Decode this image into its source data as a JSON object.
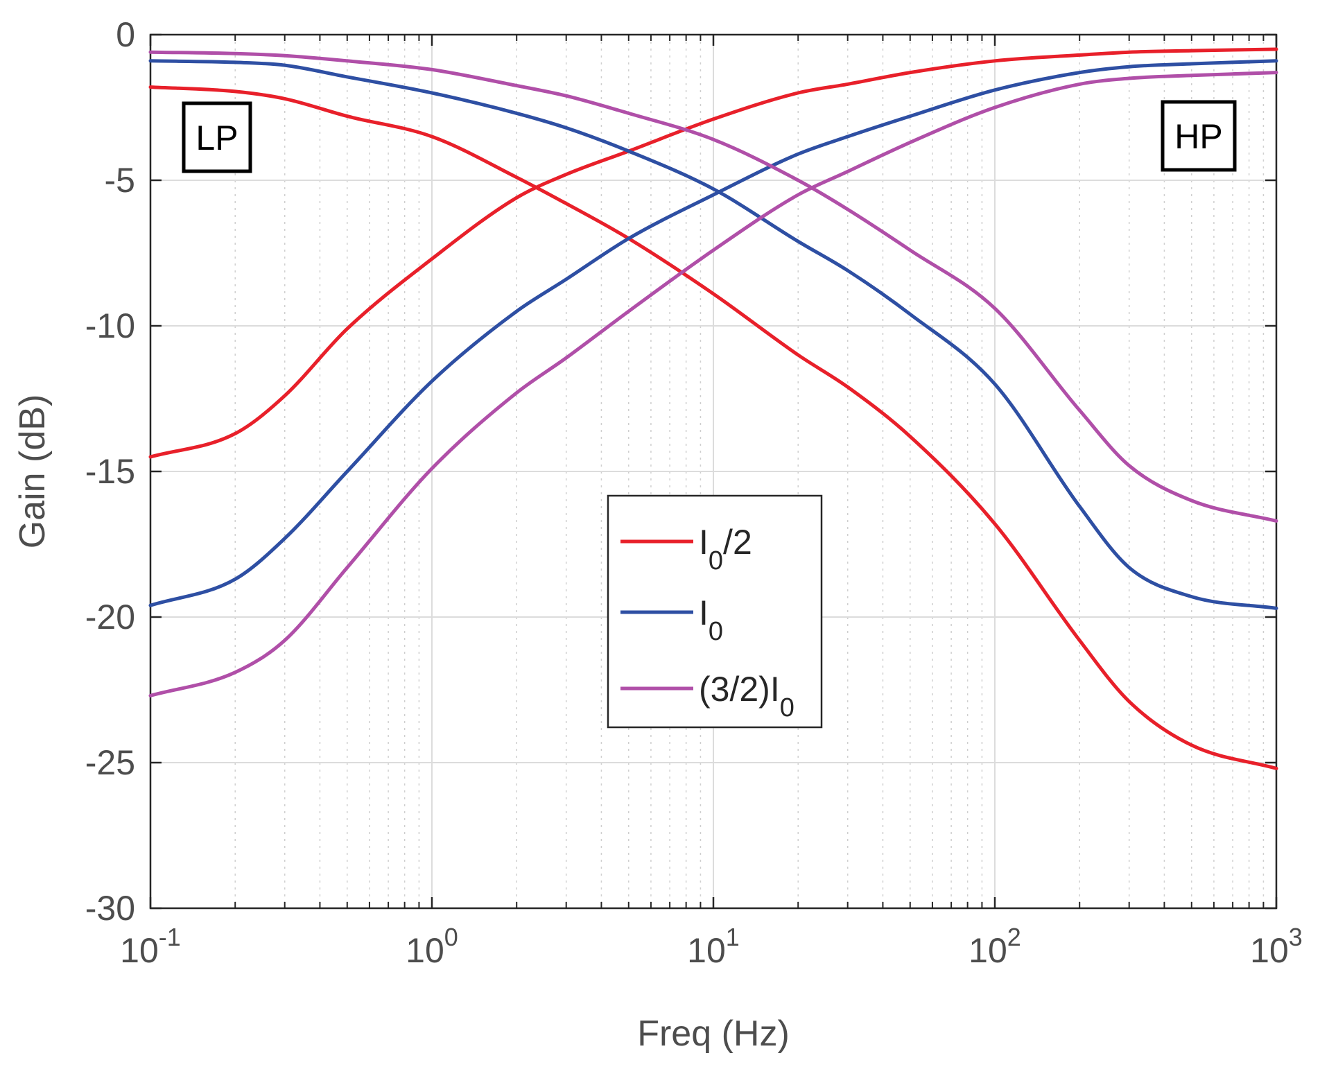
{
  "chart_data": {
    "type": "line",
    "xscale": "log",
    "xlabel": "Freq (Hz)",
    "ylabel": "Gain (dB)",
    "xlim": [
      0.1,
      1000
    ],
    "ylim": [
      -30,
      0
    ],
    "grid": true,
    "x_ticks": [
      {
        "base": "10",
        "exp": "-1"
      },
      {
        "base": "10",
        "exp": "0"
      },
      {
        "base": "10",
        "exp": "1"
      },
      {
        "base": "10",
        "exp": "2"
      },
      {
        "base": "10",
        "exp": "3"
      }
    ],
    "y_ticks": [
      "0",
      "-5",
      "-10",
      "-15",
      "-20",
      "-25",
      "-30"
    ],
    "x": [
      0.1,
      0.2,
      0.3,
      0.5,
      1,
      2,
      3,
      5,
      10,
      20,
      30,
      50,
      100,
      200,
      300,
      500,
      1000
    ],
    "series": [
      {
        "name": "I0/2",
        "label_main": "I",
        "label_sub": "0",
        "label_suffix": "/2",
        "label_prefix": "",
        "color": "#e8202a",
        "role": "lowpass",
        "values": [
          -1.8,
          -1.95,
          -2.2,
          -2.8,
          -3.5,
          -4.9,
          -5.8,
          -7.0,
          -8.9,
          -11.0,
          -12.1,
          -13.8,
          -16.8,
          -20.8,
          -22.9,
          -24.4,
          -25.2
        ]
      },
      {
        "name": "I0/2",
        "label_main": "I",
        "label_sub": "0",
        "label_suffix": "/2",
        "label_prefix": "",
        "color": "#e8202a",
        "role": "highpass",
        "values": [
          -14.5,
          -13.7,
          -12.4,
          -10.1,
          -7.7,
          -5.6,
          -4.8,
          -4.0,
          -2.9,
          -2.0,
          -1.7,
          -1.3,
          -0.9,
          -0.7,
          -0.6,
          -0.55,
          -0.5
        ]
      },
      {
        "name": "I0",
        "label_main": "I",
        "label_sub": "0",
        "label_suffix": "",
        "label_prefix": "",
        "color": "#2e4fa3",
        "role": "lowpass",
        "values": [
          -0.9,
          -0.95,
          -1.05,
          -1.45,
          -2.0,
          -2.7,
          -3.2,
          -4.0,
          -5.3,
          -7.1,
          -8.1,
          -9.6,
          -12.0,
          -16.2,
          -18.3,
          -19.3,
          -19.7
        ]
      },
      {
        "name": "I0",
        "label_main": "I",
        "label_sub": "0",
        "label_suffix": "",
        "label_prefix": "",
        "color": "#2e4fa3",
        "role": "highpass",
        "values": [
          -19.6,
          -18.7,
          -17.3,
          -15.0,
          -11.9,
          -9.5,
          -8.4,
          -7.0,
          -5.5,
          -4.1,
          -3.5,
          -2.8,
          -1.9,
          -1.3,
          -1.1,
          -1.0,
          -0.9
        ]
      },
      {
        "name": "(3/2)I0",
        "label_main": "I",
        "label_sub": "0",
        "label_suffix": "",
        "label_prefix": "(3/2)",
        "color": "#b04fa8",
        "role": "lowpass",
        "values": [
          -0.6,
          -0.65,
          -0.72,
          -0.9,
          -1.2,
          -1.75,
          -2.1,
          -2.7,
          -3.6,
          -5.0,
          -6.0,
          -7.4,
          -9.4,
          -12.9,
          -14.8,
          -16.0,
          -16.7
        ]
      },
      {
        "name": "(3/2)I0",
        "label_main": "I",
        "label_sub": "0",
        "label_suffix": "",
        "label_prefix": "(3/2)",
        "color": "#b04fa8",
        "role": "highpass",
        "values": [
          -22.7,
          -21.9,
          -20.8,
          -18.3,
          -14.9,
          -12.3,
          -11.1,
          -9.5,
          -7.4,
          -5.5,
          -4.7,
          -3.7,
          -2.5,
          -1.7,
          -1.5,
          -1.4,
          -1.3
        ]
      }
    ],
    "legend": {
      "placement": "center-bottom",
      "entries": [
        {
          "prefix": "",
          "main": "I",
          "sub": "0",
          "suffix": "/2",
          "color": "#e8202a"
        },
        {
          "prefix": "",
          "main": "I",
          "sub": "0",
          "suffix": "",
          "color": "#2e4fa3"
        },
        {
          "prefix": "(3/2)",
          "main": "I",
          "sub": "0",
          "suffix": "",
          "color": "#b04fa8"
        }
      ]
    },
    "annotations": [
      {
        "text": "LP",
        "placement": "top-left"
      },
      {
        "text": "HP",
        "placement": "top-right"
      }
    ]
  }
}
